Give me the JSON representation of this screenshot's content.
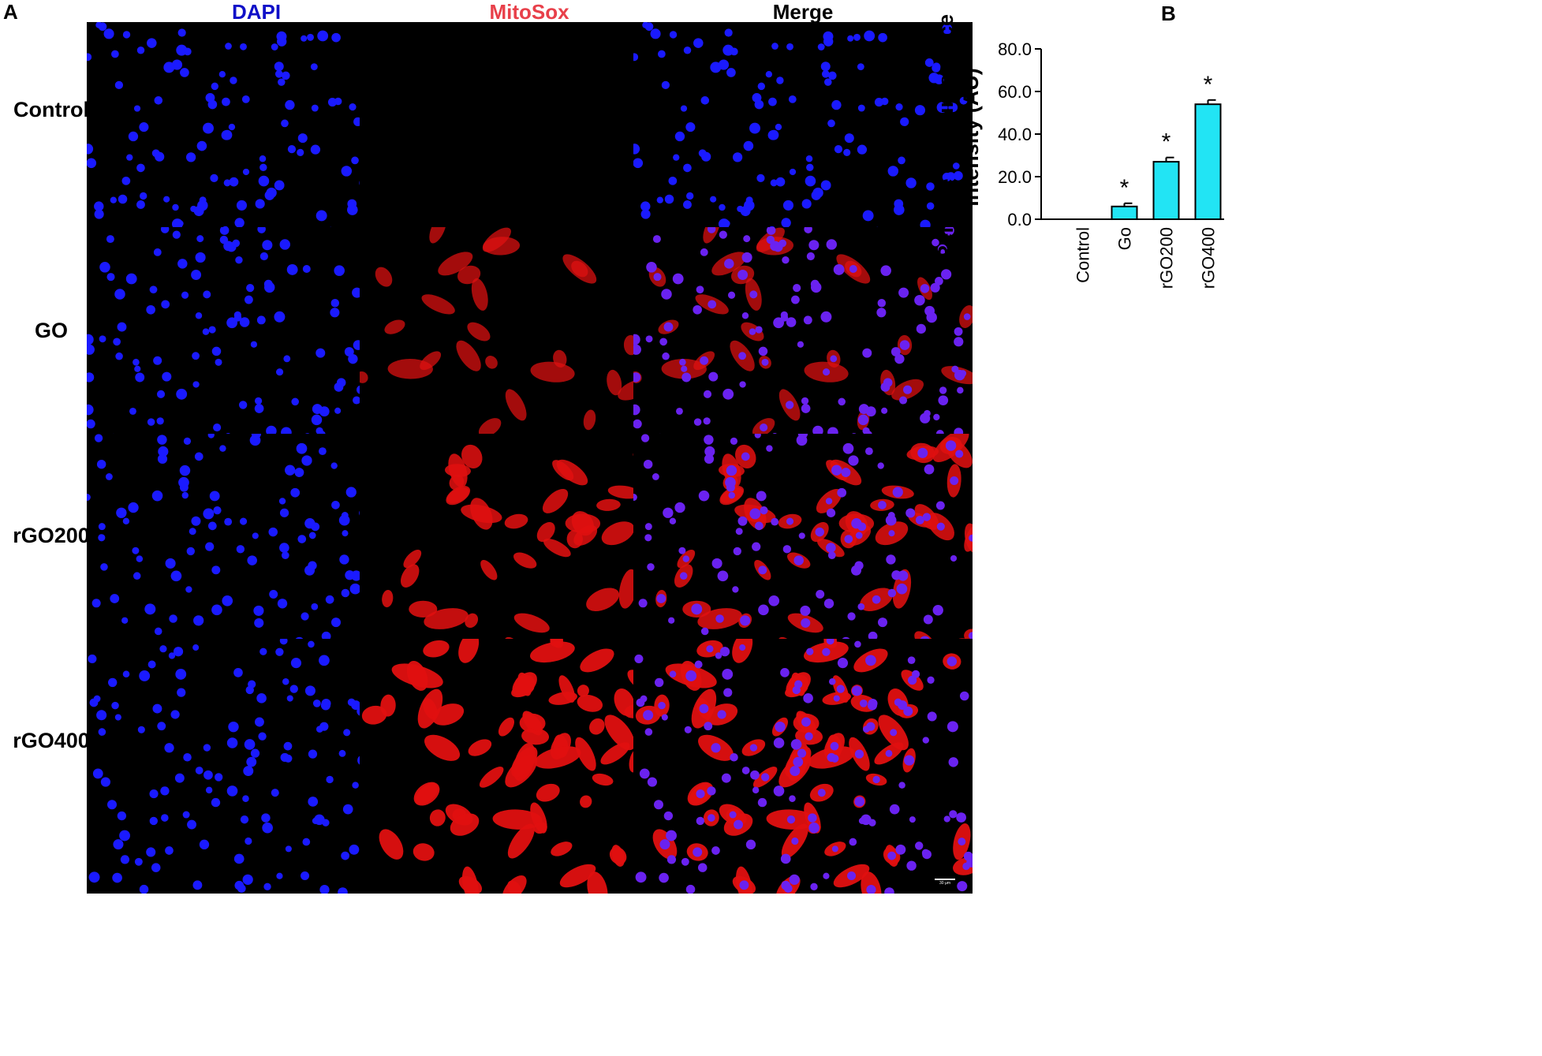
{
  "panel_a_label": "A",
  "panel_b_label": "B",
  "columns": [
    {
      "label": "DAPI",
      "color": "#1010c8"
    },
    {
      "label": "MitoSox",
      "color": "#e8404a"
    },
    {
      "label": "Merge",
      "color": "#000000"
    }
  ],
  "rows": [
    "Control",
    "GO",
    "rGO200",
    "rGO400"
  ],
  "scale_bar_text": "30 µm",
  "chart_data": {
    "type": "bar",
    "ylabel_line1": "Relative red fluroscence",
    "ylabel_line2": "intensity (AU)",
    "categories": [
      "Control",
      "Go",
      "rGO200",
      "rGO400"
    ],
    "values": [
      0,
      6,
      27,
      54
    ],
    "errors": [
      0,
      1.5,
      2,
      2
    ],
    "significance": [
      "",
      "*",
      "*",
      "*"
    ],
    "ylim": [
      0,
      80
    ],
    "yticks": [
      "0.0",
      "20.0",
      "40.0",
      "60.0",
      "80.0"
    ],
    "bar_color": "#22e4f4"
  }
}
